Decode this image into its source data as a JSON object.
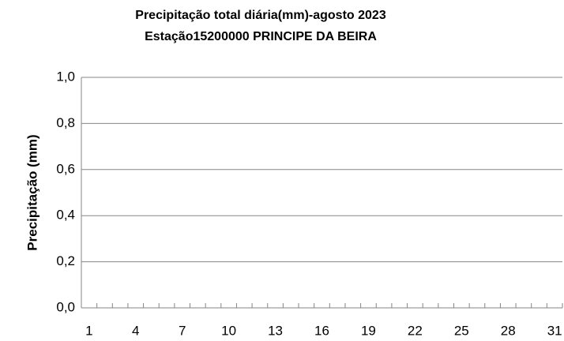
{
  "chart_data": {
    "type": "bar",
    "title": "Precipitação total diária(mm)-agosto 2023",
    "subtitle": "Estação15200000 PRINCIPE DA BEIRA",
    "ylabel": "Precipitação (mm)",
    "categories": [
      "1",
      null,
      null,
      "4",
      null,
      null,
      "7",
      null,
      null,
      "10",
      null,
      null,
      "13",
      null,
      null,
      "16",
      null,
      null,
      "19",
      null,
      null,
      "22",
      null,
      null,
      "25",
      null,
      null,
      "28",
      null,
      null,
      "31"
    ],
    "values": [
      0,
      0,
      0,
      0,
      0,
      0,
      0,
      0,
      0,
      0,
      0,
      0,
      0,
      0,
      0,
      0,
      0,
      0,
      0,
      0,
      0,
      0,
      0,
      0,
      0,
      0,
      0,
      0,
      0,
      0,
      0
    ],
    "color": "#4472c4",
    "ylim": [
      0,
      1
    ],
    "yticks": [
      {
        "value": 0,
        "label": "0,0"
      },
      {
        "value": 0.2,
        "label": "0,2"
      },
      {
        "value": 0.4,
        "label": "0,4"
      },
      {
        "value": 0.6,
        "label": "0,6"
      },
      {
        "value": 0.8,
        "label": "0,8"
      },
      {
        "value": 1,
        "label": "1,0"
      }
    ],
    "grid": true
  }
}
